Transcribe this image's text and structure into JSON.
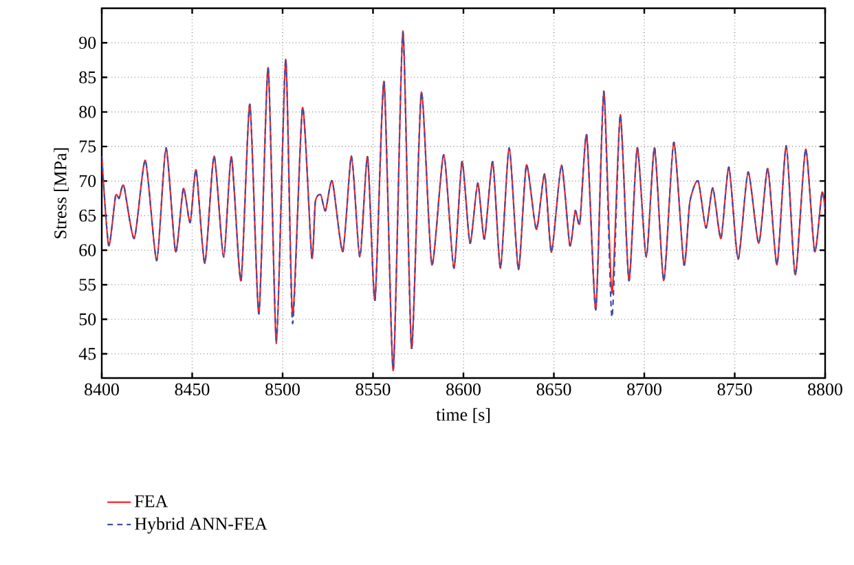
{
  "chart_data": {
    "type": "line",
    "xlabel": "time [s]",
    "ylabel": "Stress [MPa]",
    "xlim": [
      8400,
      8800
    ],
    "ylim": [
      41.5,
      95
    ],
    "xticks": [
      8400,
      8450,
      8500,
      8550,
      8600,
      8650,
      8700,
      8750,
      8800
    ],
    "yticks": [
      45,
      50,
      55,
      60,
      65,
      70,
      75,
      80,
      85,
      90
    ],
    "grid": true,
    "legend": "bottom",
    "x": [
      8400,
      8403.8,
      8407.6,
      8409.6,
      8412.2,
      8418,
      8424.1,
      8430.4,
      8435.5,
      8440.8,
      8445.1,
      8448.9,
      8452.2,
      8457,
      8462.1,
      8467.4,
      8471.7,
      8477,
      8481.9,
      8486.9,
      8492,
      8496.6,
      8501.7,
      8505.5,
      8511,
      8516.1,
      8518.1,
      8521.1,
      8523.7,
      8527.5,
      8533.3,
      8538.1,
      8542.7,
      8547,
      8551.1,
      8556.1,
      8561.2,
      8566.5,
      8571.3,
      8576.7,
      8582.5,
      8589.1,
      8594.7,
      8599.2,
      8603.6,
      8607.9,
      8611.6,
      8616.2,
      8620.5,
      8625.3,
      8630.4,
      8634.8,
      8640.3,
      8644.9,
      8648.7,
      8654.2,
      8658.8,
      8661.8,
      8664.4,
      8668.2,
      8673.2,
      8677.6,
      8682.1,
      8686.7,
      8691.5,
      8696.1,
      8701.1,
      8705.7,
      8710.8,
      8716.3,
      8721.9,
      8725.2,
      8729.8,
      8734.1,
      8737.9,
      8742.4,
      8746.8,
      8751.9,
      8757.4,
      8763.3,
      8768.3,
      8773.4,
      8778.5,
      8783.5,
      8789.2,
      8794.2,
      8798.2,
      8800
    ],
    "series": [
      {
        "name": "FEA",
        "color": "#ff2020",
        "line_style": "solid",
        "values": [
          73.6,
          60.7,
          67.8,
          67.5,
          69.3,
          61.7,
          73.0,
          58.5,
          74.8,
          59.8,
          68.9,
          64.0,
          71.6,
          58.1,
          73.6,
          59.0,
          73.5,
          55.6,
          81.1,
          50.8,
          86.4,
          46.5,
          87.6,
          50.4,
          80.6,
          59.0,
          67.0,
          68.0,
          65.7,
          70.0,
          59.8,
          73.6,
          59.0,
          73.5,
          52.8,
          84.4,
          42.6,
          91.7,
          45.8,
          82.8,
          57.9,
          73.8,
          57.4,
          72.8,
          61.0,
          69.7,
          61.6,
          72.8,
          57.4,
          74.8,
          57.2,
          72.3,
          63.0,
          71.0,
          59.7,
          72.3,
          60.7,
          65.7,
          64.0,
          76.6,
          51.4,
          83.0,
          53.8,
          79.6,
          55.6,
          74.8,
          59.0,
          74.8,
          55.6,
          75.6,
          57.9,
          67.0,
          70.0,
          63.2,
          69.0,
          61.7,
          72.0,
          58.7,
          71.3,
          61.0,
          71.8,
          57.9,
          75.1,
          56.4,
          74.6,
          59.8,
          68.3,
          66.0
        ]
      },
      {
        "name": "Hybrid ANN-FEA",
        "color": "#3f4fa8",
        "line_style": "dashed",
        "values": [
          73.6,
          60.7,
          67.8,
          67.5,
          69.3,
          61.7,
          73.0,
          58.5,
          74.8,
          59.8,
          68.9,
          64.0,
          71.6,
          58.1,
          73.6,
          59.0,
          73.5,
          55.6,
          81.1,
          50.8,
          86.4,
          47.0,
          87.6,
          49.4,
          80.6,
          59.0,
          67.0,
          68.0,
          65.7,
          70.0,
          59.8,
          73.6,
          59.0,
          73.5,
          52.8,
          84.4,
          42.8,
          91.5,
          45.8,
          82.8,
          57.9,
          73.8,
          57.4,
          72.8,
          61.0,
          69.7,
          61.6,
          72.8,
          57.4,
          74.8,
          57.2,
          72.3,
          63.0,
          71.0,
          59.7,
          72.3,
          60.7,
          65.7,
          64.0,
          76.6,
          51.4,
          83.0,
          50.3,
          79.6,
          55.6,
          74.8,
          59.0,
          74.8,
          55.6,
          75.6,
          57.9,
          67.0,
          70.0,
          63.2,
          69.0,
          61.7,
          72.0,
          58.7,
          71.3,
          61.0,
          71.8,
          57.9,
          75.1,
          56.4,
          74.6,
          59.8,
          68.3,
          66.0
        ]
      }
    ]
  }
}
